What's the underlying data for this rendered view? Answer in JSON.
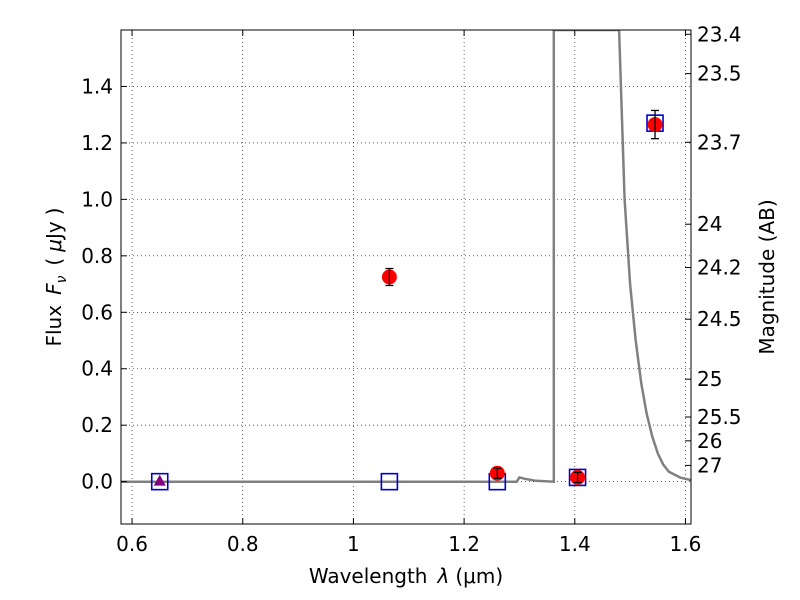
{
  "chart_data": {
    "type": "scatter",
    "xlabel_prefix": "Wavelength",
    "xlabel_symbol": "λ",
    "xlabel_unit": "(μm)",
    "ylabel_prefix": "Flux",
    "ylabel_symbol": "F",
    "ylabel_subscript": "ν",
    "ylabel_open": "(",
    "ylabel_unit_symbol": "μ",
    "ylabel_unit_rest": "Jy",
    "ylabel_close": ")",
    "y2label": "Magnitude (AB)",
    "xlim": [
      0.58,
      1.61
    ],
    "ylim": [
      -0.15,
      1.6
    ],
    "x_ticks": [
      {
        "value": 0.6,
        "label": "0.6"
      },
      {
        "value": 0.8,
        "label": "0.8"
      },
      {
        "value": 1.0,
        "label": "1"
      },
      {
        "value": 1.2,
        "label": "1.2"
      },
      {
        "value": 1.4,
        "label": "1.4"
      },
      {
        "value": 1.6,
        "label": "1.6"
      }
    ],
    "y_ticks": [
      {
        "value": 0.0,
        "label": "0.0"
      },
      {
        "value": 0.2,
        "label": "0.2"
      },
      {
        "value": 0.4,
        "label": "0.4"
      },
      {
        "value": 0.6,
        "label": "0.6"
      },
      {
        "value": 0.8,
        "label": "0.8"
      },
      {
        "value": 1.0,
        "label": "1.0"
      },
      {
        "value": 1.2,
        "label": "1.2"
      },
      {
        "value": 1.4,
        "label": "1.4"
      }
    ],
    "mag_ticks": [
      {
        "label": "23.4"
      },
      {
        "label": "23.5"
      },
      {
        "label": "23.7"
      },
      {
        "label": "24"
      },
      {
        "label": "24.2"
      },
      {
        "label": "24.5"
      },
      {
        "label": "25"
      },
      {
        "label": "25.5"
      },
      {
        "label": "26"
      },
      {
        "label": "27"
      }
    ],
    "grid": true,
    "observed_color": "#ff0000",
    "model_color": "#0000cc",
    "sed_color": "#808080",
    "series": [
      {
        "marker": "circle",
        "points": [
          {
            "x": 1.065,
            "y": 0.725,
            "err": 0.03
          },
          {
            "x": 1.26,
            "y": 0.03,
            "err": 0.018
          },
          {
            "x": 1.405,
            "y": 0.015,
            "err": 0.018
          },
          {
            "x": 1.545,
            "y": 1.265,
            "err": 0.05
          }
        ]
      },
      {
        "marker": "triangle",
        "points": [
          {
            "x": 0.65,
            "y": 0.0
          }
        ]
      },
      {
        "marker": "open-square",
        "points": [
          {
            "x": 0.65,
            "y": 0.0
          },
          {
            "x": 1.065,
            "y": 0.0
          },
          {
            "x": 1.26,
            "y": 0.0
          },
          {
            "x": 1.405,
            "y": 0.015
          },
          {
            "x": 1.545,
            "y": 1.27
          }
        ]
      },
      {
        "marker": "line",
        "points": [
          {
            "x": 0.58,
            "y": 0.0
          },
          {
            "x": 1.295,
            "y": 0.0
          },
          {
            "x": 1.3,
            "y": 0.015
          },
          {
            "x": 1.31,
            "y": 0.01
          },
          {
            "x": 1.33,
            "y": 0.003
          },
          {
            "x": 1.362,
            "y": 0.0
          },
          {
            "x": 1.362,
            "y": 1.6
          },
          {
            "x": 1.48,
            "y": 1.6
          },
          {
            "x": 1.49,
            "y": 1.0
          },
          {
            "x": 1.5,
            "y": 0.7
          },
          {
            "x": 1.51,
            "y": 0.5
          },
          {
            "x": 1.52,
            "y": 0.35
          },
          {
            "x": 1.53,
            "y": 0.24
          },
          {
            "x": 1.54,
            "y": 0.16
          },
          {
            "x": 1.55,
            "y": 0.1
          },
          {
            "x": 1.56,
            "y": 0.06
          },
          {
            "x": 1.57,
            "y": 0.035
          },
          {
            "x": 1.59,
            "y": 0.015
          },
          {
            "x": 1.61,
            "y": 0.005
          }
        ]
      }
    ]
  }
}
